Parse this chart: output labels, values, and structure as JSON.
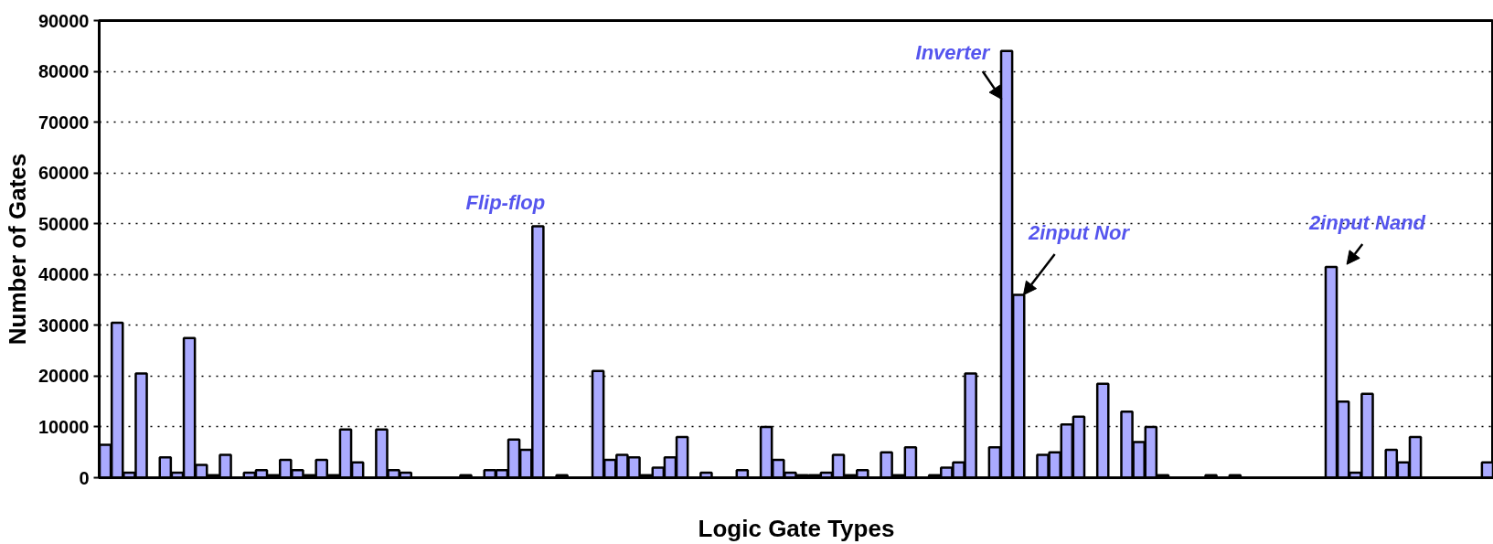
{
  "chart_data": {
    "type": "bar",
    "xlabel": "Logic Gate Types",
    "ylabel": "Number of Gates",
    "categories": [
      null,
      null,
      null,
      null,
      null,
      null,
      null,
      null,
      null,
      null,
      null,
      null,
      null,
      null,
      null,
      null,
      null,
      null,
      null,
      null,
      null,
      null,
      null,
      null,
      null,
      null,
      null,
      null,
      null,
      null,
      null,
      null,
      null,
      null,
      null,
      null,
      null,
      null,
      null,
      null,
      null,
      null,
      null,
      null,
      null,
      null,
      null,
      null,
      null,
      null,
      null,
      null,
      null,
      null,
      null,
      null,
      null,
      null,
      null,
      null,
      null,
      null,
      null,
      null,
      null,
      null,
      null,
      null,
      null,
      null,
      null,
      null,
      null,
      null,
      null,
      null,
      null,
      null,
      null,
      null,
      null,
      null,
      null,
      null,
      null,
      null,
      null,
      null,
      null,
      null,
      null,
      null,
      null,
      null,
      null,
      null,
      null,
      null,
      null,
      null,
      null,
      null,
      null,
      null,
      null,
      null,
      null,
      null,
      null,
      null,
      null,
      null,
      null,
      null,
      null,
      null
    ],
    "values": [
      6500,
      30500,
      1000,
      20500,
      0,
      4000,
      1000,
      27500,
      2500,
      500,
      4500,
      0,
      1000,
      1500,
      500,
      3500,
      1500,
      500,
      3500,
      500,
      9500,
      3000,
      0,
      9500,
      1500,
      1000,
      0,
      0,
      0,
      0,
      500,
      0,
      1500,
      1500,
      7500,
      5500,
      49500,
      0,
      500,
      0,
      0,
      21000,
      3500,
      4500,
      4000,
      500,
      2000,
      4000,
      8000,
      0,
      1000,
      0,
      0,
      1500,
      0,
      10000,
      3500,
      1000,
      500,
      500,
      1000,
      4500,
      500,
      1500,
      0,
      5000,
      500,
      6000,
      0,
      500,
      2000,
      3000,
      20500,
      0,
      6000,
      84000,
      36000,
      0,
      4500,
      5000,
      10500,
      12000,
      0,
      18500,
      0,
      13000,
      7000,
      10000,
      500,
      0,
      0,
      0,
      500,
      0,
      500,
      0,
      0,
      0,
      0,
      0,
      0,
      0,
      41500,
      15000,
      1000,
      16500,
      0,
      5500,
      3000,
      8000,
      0,
      0,
      0,
      0,
      0,
      3000
    ],
    "color": "#aaaaff",
    "ylim": [
      0,
      90000
    ],
    "yticks": [
      0,
      10000,
      20000,
      30000,
      40000,
      50000,
      60000,
      70000,
      80000,
      90000
    ],
    "grid": "y",
    "tick_labels": "y",
    "annotations": [
      "Flip-flop",
      "Inverter",
      "2input Nor",
      "2input Nand"
    ]
  }
}
